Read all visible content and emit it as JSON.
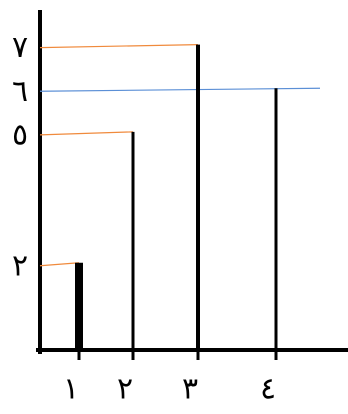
{
  "chart_data": {
    "type": "bar",
    "categories": [
      "١",
      "٢",
      "٣",
      "٤"
    ],
    "values": [
      2,
      5,
      7,
      6
    ],
    "color": "#000000",
    "ylim": [
      0,
      8
    ],
    "yticks": [
      {
        "value": 2,
        "label": "٢"
      },
      {
        "value": 5,
        "label": "٥"
      },
      {
        "value": 6,
        "label": "٦"
      },
      {
        "value": 7,
        "label": "٧"
      }
    ],
    "grid": true,
    "grid_colors": [
      "#f08a3c",
      "#f08a3c",
      "#5b8fd6",
      "#f08a3c"
    ]
  }
}
